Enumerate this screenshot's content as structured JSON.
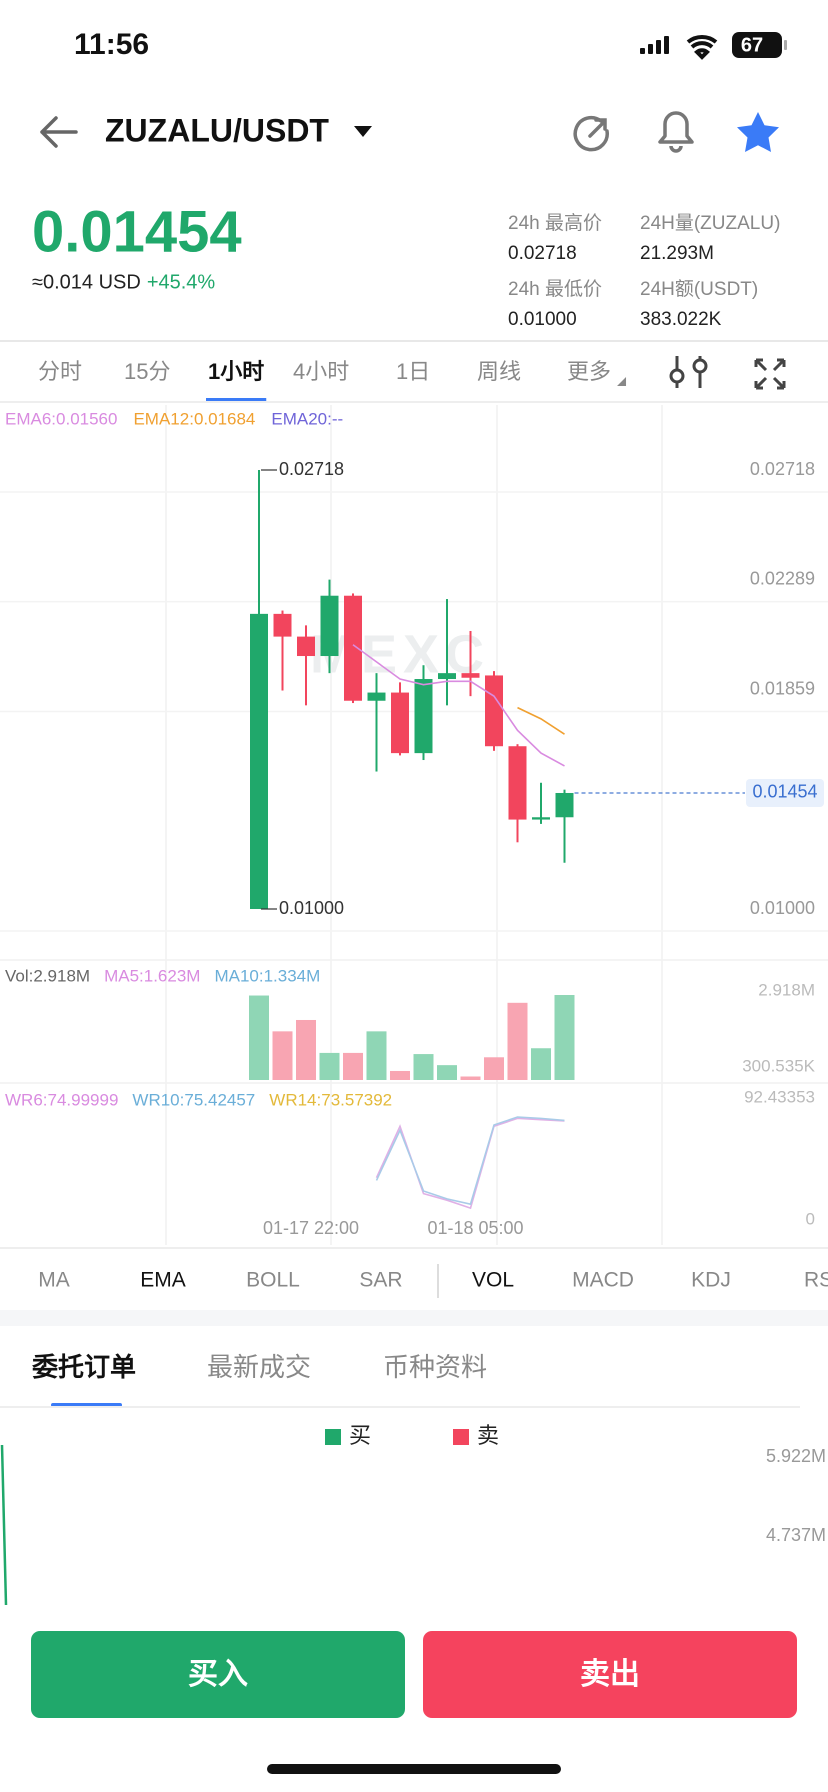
{
  "status": {
    "time": "11:56",
    "battery": "67"
  },
  "header": {
    "pair": "ZUZALU/USDT"
  },
  "ticker": {
    "price": "0.01454",
    "usd": "≈0.014 USD",
    "change": "+45.4%",
    "stats": [
      {
        "label": "24h 最高价",
        "value": "0.02718"
      },
      {
        "label": "24H量(ZUZALU)",
        "value": "21.293M"
      },
      {
        "label": "24h 最低价",
        "value": "0.01000"
      },
      {
        "label": "24H额(USDT)",
        "value": "383.022K"
      }
    ]
  },
  "intervals": [
    "分时",
    "15分",
    "1小时",
    "4小时",
    "1日",
    "周线",
    "更多"
  ],
  "active_interval": 2,
  "kline": {
    "type": "candlestick",
    "up_color": "#20a86b",
    "down_color": "#f2455d",
    "ema_labels": [
      "EMA6:0.01560",
      "EMA12:0.01684",
      "EMA20:--"
    ],
    "ylim": [
      0.01,
      0.02718
    ],
    "yticks": [
      0.02718,
      0.02289,
      0.01859,
      {
        "value": 0.01,
        "label": "0.01000"
      }
    ],
    "last_price": {
      "value": 0.01454,
      "label": "0.01454"
    },
    "high_label": {
      "value": 0.02718,
      "label": "0.02718"
    },
    "low_label": {
      "value": 0.01,
      "label": "0.01000"
    },
    "candles": [
      {
        "open": 0.01,
        "high": 0.02718,
        "low": 0.01,
        "close": 0.02155
      },
      {
        "open": 0.02155,
        "high": 0.02168,
        "low": 0.01855,
        "close": 0.02066
      },
      {
        "open": 0.02066,
        "high": 0.0211,
        "low": 0.01797,
        "close": 0.0199
      },
      {
        "open": 0.0199,
        "high": 0.02289,
        "low": 0.01923,
        "close": 0.02226
      },
      {
        "open": 0.02226,
        "high": 0.02235,
        "low": 0.01806,
        "close": 0.01815
      },
      {
        "open": 0.01815,
        "high": 0.01923,
        "low": 0.01538,
        "close": 0.01847
      },
      {
        "open": 0.01847,
        "high": 0.01887,
        "low": 0.01601,
        "close": 0.0161
      },
      {
        "open": 0.0161,
        "high": 0.01954,
        "low": 0.01583,
        "close": 0.019
      },
      {
        "open": 0.019,
        "high": 0.02213,
        "low": 0.01797,
        "close": 0.01923
      },
      {
        "open": 0.01923,
        "high": 0.02088,
        "low": 0.01833,
        "close": 0.01905
      },
      {
        "open": 0.01914,
        "high": 0.01931,
        "low": 0.01619,
        "close": 0.01637
      },
      {
        "open": 0.01637,
        "high": 0.01645,
        "low": 0.01261,
        "close": 0.0135
      },
      {
        "open": 0.0135,
        "high": 0.01494,
        "low": 0.01333,
        "close": 0.01359
      },
      {
        "open": 0.01359,
        "high": 0.01467,
        "low": 0.01181,
        "close": 0.01454
      }
    ],
    "ema6": [
      null,
      null,
      null,
      null,
      0.02034,
      0.01967,
      0.019,
      0.01878,
      0.01891,
      0.01891,
      0.01833,
      0.01699,
      0.0161,
      0.0156
    ],
    "ema12": [
      null,
      null,
      null,
      null,
      null,
      null,
      null,
      null,
      null,
      null,
      null,
      0.01788,
      0.01744,
      0.01684
    ],
    "x_labels": [
      {
        "index": 2,
        "label": "01-17 22:00"
      },
      {
        "index": 9,
        "label": "01-18 05:00"
      }
    ]
  },
  "volume": {
    "labels": [
      "Vol:2.918M",
      "MA5:1.623M",
      "MA10:1.334M"
    ],
    "ylim": [
      0,
      2918000
    ],
    "yticks": [
      {
        "value": 2918000,
        "label": "2.918M"
      },
      {
        "value": 300535,
        "label": "300.535K"
      }
    ],
    "values": [
      2900000,
      1670000,
      2060000,
      930000,
      930000,
      1670000,
      310000,
      890000,
      510000,
      120000,
      780000,
      2650000,
      1090000,
      2918000
    ]
  },
  "wr": {
    "labels": [
      "WR6:74.99999",
      "WR10:75.42457",
      "WR14:73.57392"
    ],
    "ylim": [
      0,
      92.43353
    ],
    "yticks": [
      92.43353,
      0
    ],
    "wr6": [
      null,
      null,
      null,
      null,
      null,
      32,
      71,
      20,
      15,
      9,
      71,
      77,
      76,
      75
    ],
    "wr10": [
      null,
      null,
      null,
      null,
      null,
      30,
      68,
      22,
      16,
      12,
      72,
      78,
      77,
      75.42457
    ]
  },
  "indicators": [
    "MA",
    "EMA",
    "BOLL",
    "SAR",
    "VOL",
    "MACD",
    "KDJ",
    "RSI"
  ],
  "active_indicators": [
    1,
    4
  ],
  "orders": {
    "tabs": [
      "委托订单",
      "最新成交",
      "币种资料"
    ],
    "legend": [
      "买",
      "卖"
    ],
    "depth_ticks": [
      "5.922M",
      "4.737M"
    ]
  },
  "actions": {
    "buy": "买入",
    "sell": "卖出"
  }
}
